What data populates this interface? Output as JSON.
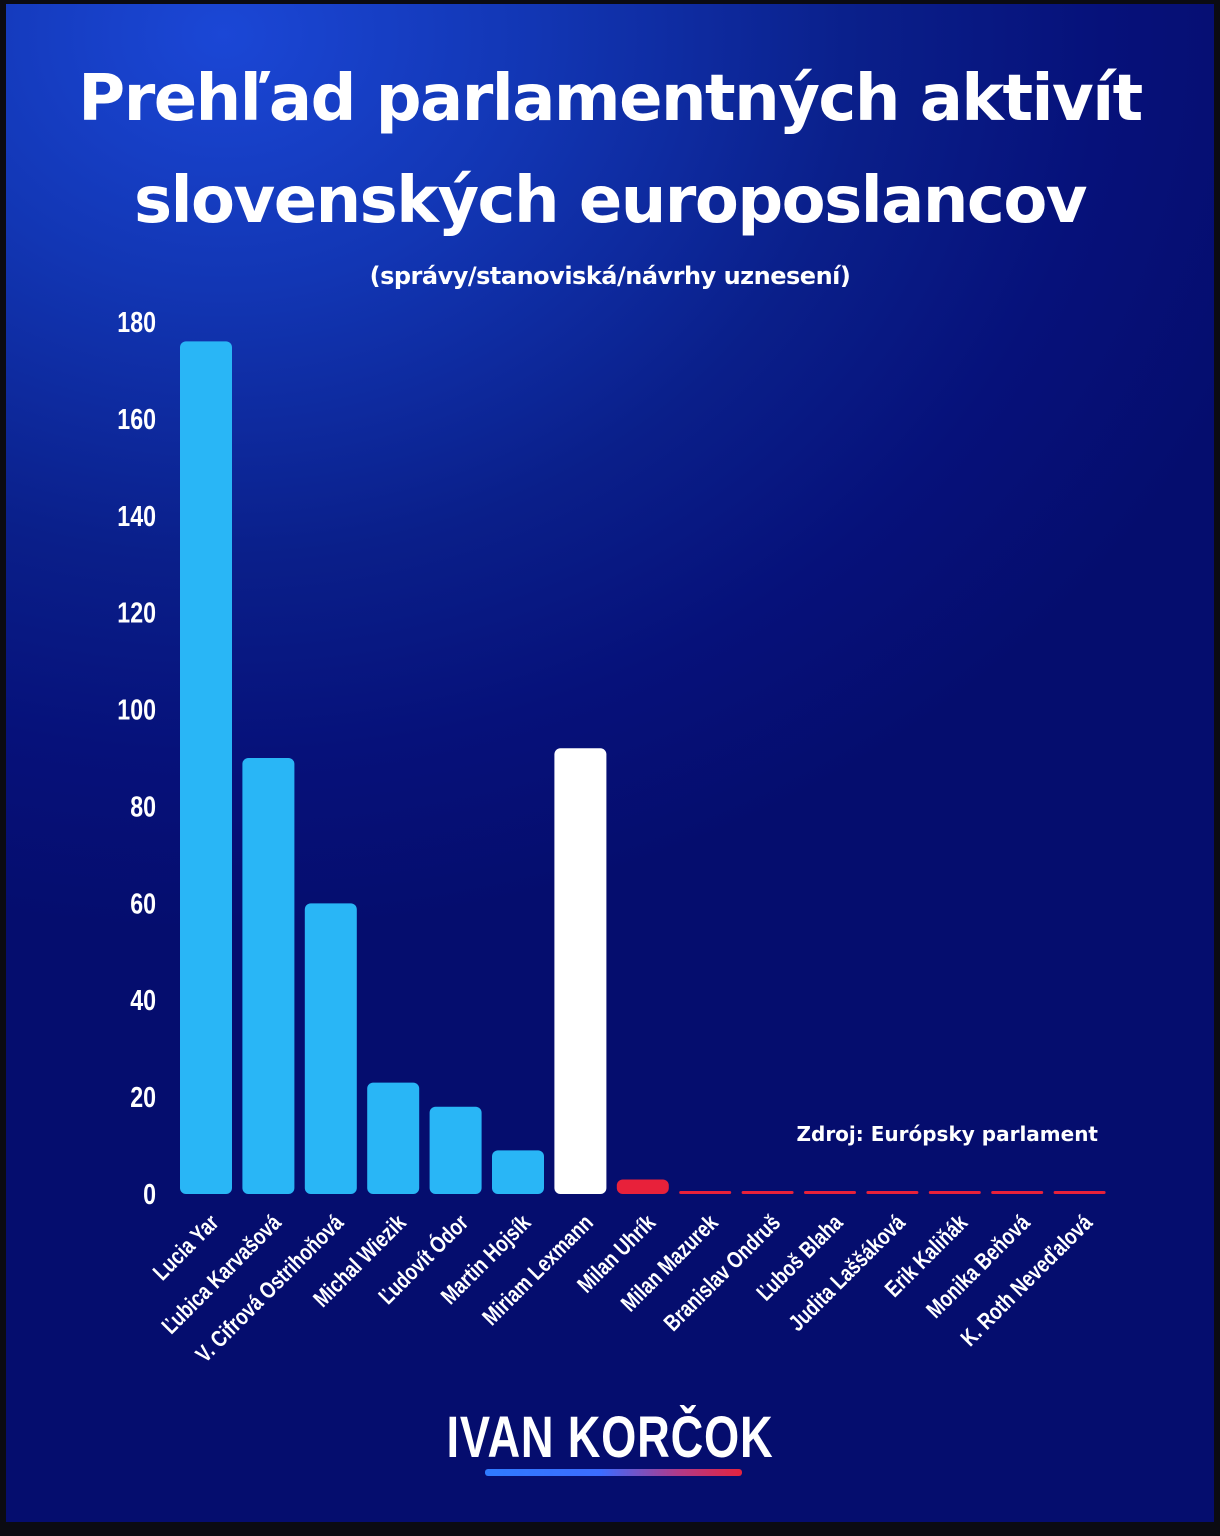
{
  "colors": {
    "bar_blue": "#29b6f6",
    "bar_white": "#ffffff",
    "bar_red": "#e8213a",
    "background_top": "#1b47d6",
    "background_bottom": "#050d6e"
  },
  "source_label": "Zdroj: Európsky parlament",
  "brand": {
    "name": "IVAN KORČOK"
  },
  "chart_data": {
    "type": "bar",
    "title": "Prehľad parlamentných aktivít slovenských europoslancov",
    "title_line1": "Prehľad parlamentných aktivít",
    "title_line2": "slovenských europoslancov",
    "subtitle": "(správy/stanoviská/návrhy uznesení)",
    "categories": [
      "Lucia Yar",
      "Ľubica Karvašová",
      "V. Cifrová Ostrihoňová",
      "Michal Wiezik",
      "Ľudovít Ódor",
      "Martin Hojsík",
      "Miriam Lexmann",
      "Milan Uhrík",
      "Milan Mazurek",
      "Branislav Ondruš",
      "Ľuboš Blaha",
      "Judita Laššáková",
      "Erik Kaliňák",
      "Monika Beňová",
      "K. Roth Neveďalová"
    ],
    "values": [
      176,
      90,
      60,
      23,
      18,
      9,
      92,
      3,
      0,
      0,
      0,
      0,
      0,
      0,
      0
    ],
    "bar_colors": [
      "blue",
      "blue",
      "blue",
      "blue",
      "blue",
      "blue",
      "white",
      "red",
      "red",
      "red",
      "red",
      "red",
      "red",
      "red",
      "red"
    ],
    "y_ticks": [
      "0",
      "20",
      "40",
      "60",
      "80",
      "100",
      "120",
      "140",
      "160",
      "180"
    ],
    "ylim": [
      0,
      180
    ],
    "xlabel": "",
    "ylabel": "",
    "grid": false,
    "legend": "none"
  }
}
